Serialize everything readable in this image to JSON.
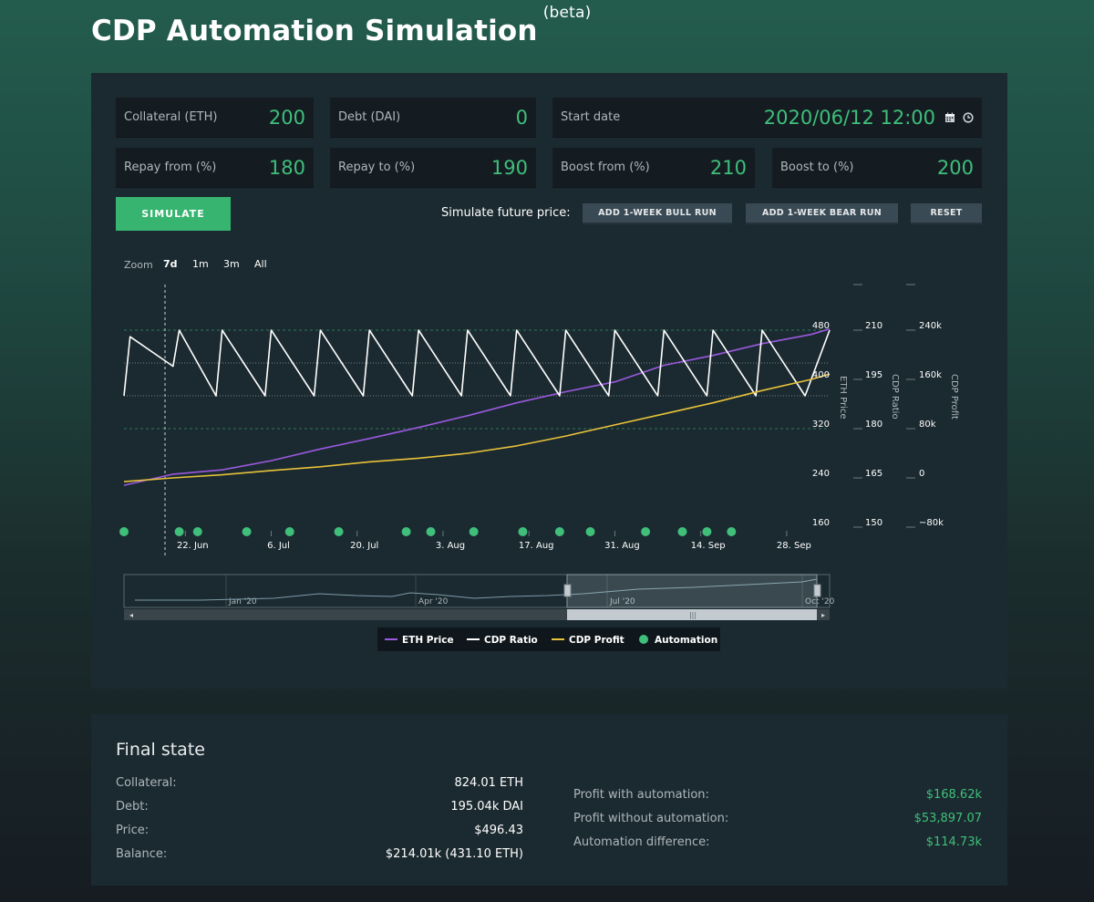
{
  "header": {
    "title": "CDP Automation Simulation",
    "badge": "(beta)"
  },
  "inputs": {
    "collateral": {
      "label": "Collateral (ETH)",
      "value": "200"
    },
    "debt": {
      "label": "Debt (DAI)",
      "value": "0"
    },
    "start_date": {
      "label": "Start date",
      "value": "2020/06/12 12:00"
    },
    "repay_from": {
      "label": "Repay from (%)",
      "value": "180"
    },
    "repay_to": {
      "label": "Repay to (%)",
      "value": "190"
    },
    "boost_from": {
      "label": "Boost from (%)",
      "value": "210"
    },
    "boost_to": {
      "label": "Boost to (%)",
      "value": "200"
    }
  },
  "actions": {
    "simulate": "SIMULATE",
    "future_label": "Simulate future price:",
    "bull": "ADD 1-WEEK BULL RUN",
    "bear": "ADD 1-WEEK BEAR RUN",
    "reset": "RESET"
  },
  "zoom": {
    "label": "Zoom",
    "options": [
      "7d",
      "1m",
      "3m",
      "All"
    ]
  },
  "chart_data": {
    "type": "line",
    "x_ticks": [
      "22. Jun",
      "6. Jul",
      "20. Jul",
      "3. Aug",
      "17. Aug",
      "31. Aug",
      "14. Sep",
      "28. Sep"
    ],
    "eth_axis": {
      "label": "ETH Price",
      "ticks": [
        "160",
        "240",
        "320",
        "400",
        "480"
      ],
      "range": [
        160,
        480
      ]
    },
    "ratio_axis": {
      "label": "CDP Ratio",
      "ticks": [
        "150",
        "165",
        "180",
        "195",
        "210"
      ],
      "range": [
        150,
        210
      ]
    },
    "profit_axis": {
      "label": "CDP Profit",
      "ticks": [
        "−80k",
        "0",
        "80k",
        "160k",
        "240k"
      ],
      "range": [
        -80000,
        240000
      ]
    },
    "series": [
      {
        "name": "ETH Price",
        "color": "#9b59e0",
        "x": [
          "2020-06-12",
          "2020-06-20",
          "2020-06-28",
          "2020-07-06",
          "2020-07-14",
          "2020-07-22",
          "2020-07-30",
          "2020-08-07",
          "2020-08-15",
          "2020-08-23",
          "2020-08-31",
          "2020-09-08",
          "2020-09-16",
          "2020-09-24",
          "2020-10-02",
          "2020-10-05"
        ],
        "values": [
          228,
          246,
          253,
          268,
          287,
          304,
          322,
          341,
          362,
          380,
          396,
          423,
          439,
          458,
          473,
          482
        ]
      },
      {
        "name": "CDP Ratio",
        "color": "#ffffff",
        "x": [
          "2020-06-12",
          "2020-06-13",
          "2020-06-20",
          "2020-06-21",
          "2020-06-27",
          "2020-06-28",
          "2020-07-05",
          "2020-07-06",
          "2020-07-13",
          "2020-07-14",
          "2020-07-21",
          "2020-07-22",
          "2020-07-29",
          "2020-07-30",
          "2020-08-06",
          "2020-08-07",
          "2020-08-14",
          "2020-08-15",
          "2020-08-22",
          "2020-08-23",
          "2020-08-30",
          "2020-08-31",
          "2020-09-07",
          "2020-09-08",
          "2020-09-15",
          "2020-09-16",
          "2020-09-23",
          "2020-09-24",
          "2020-10-01",
          "2020-10-05"
        ],
        "values": [
          190,
          208,
          199,
          210,
          190,
          210,
          190,
          210,
          190,
          210,
          190,
          210,
          190,
          210,
          190,
          210,
          190,
          210,
          190,
          210,
          190,
          210,
          190,
          210,
          190,
          210,
          190,
          210,
          190,
          210
        ]
      },
      {
        "name": "CDP Profit",
        "color": "#e8c23a",
        "x": [
          "2020-06-12",
          "2020-06-20",
          "2020-06-28",
          "2020-07-06",
          "2020-07-14",
          "2020-07-22",
          "2020-07-30",
          "2020-08-07",
          "2020-08-15",
          "2020-08-23",
          "2020-08-31",
          "2020-09-08",
          "2020-09-16",
          "2020-09-24",
          "2020-10-02",
          "2020-10-05"
        ],
        "values": [
          -6000,
          0,
          5000,
          12000,
          18000,
          26000,
          32000,
          40000,
          52000,
          68000,
          86000,
          104000,
          122000,
          142000,
          160000,
          168620
        ]
      }
    ],
    "automation_events": [
      "2020-06-12",
      "2020-06-21",
      "2020-06-24",
      "2020-07-02",
      "2020-07-09",
      "2020-07-17",
      "2020-07-28",
      "2020-08-01",
      "2020-08-08",
      "2020-08-16",
      "2020-08-22",
      "2020-08-27",
      "2020-09-05",
      "2020-09-11",
      "2020-09-15",
      "2020-09-19"
    ],
    "threshold_lines": [
      210,
      200,
      190,
      180
    ],
    "navigator_ticks": [
      "Jan '20",
      "Apr '20",
      "Jul '20",
      "Oct '20"
    ],
    "legend": [
      "ETH Price",
      "CDP Ratio",
      "CDP Profit",
      "Automation"
    ],
    "legend_placement": "bottom-center",
    "automation_color": "#3fbf7a"
  },
  "final_state": {
    "title": "Final state",
    "left": [
      {
        "label": "Collateral:",
        "value": "824.01 ETH"
      },
      {
        "label": "Debt:",
        "value": "195.04k DAI"
      },
      {
        "label": "Price:",
        "value": "$496.43"
      },
      {
        "label": "Balance:",
        "value": "$214.01k (431.10 ETH)"
      }
    ],
    "right": [
      {
        "label": "Profit with automation:",
        "value": "$168.62k"
      },
      {
        "label": "Profit without automation:",
        "value": "$53,897.07"
      },
      {
        "label": "Automation difference:",
        "value": "$114.73k"
      }
    ]
  }
}
